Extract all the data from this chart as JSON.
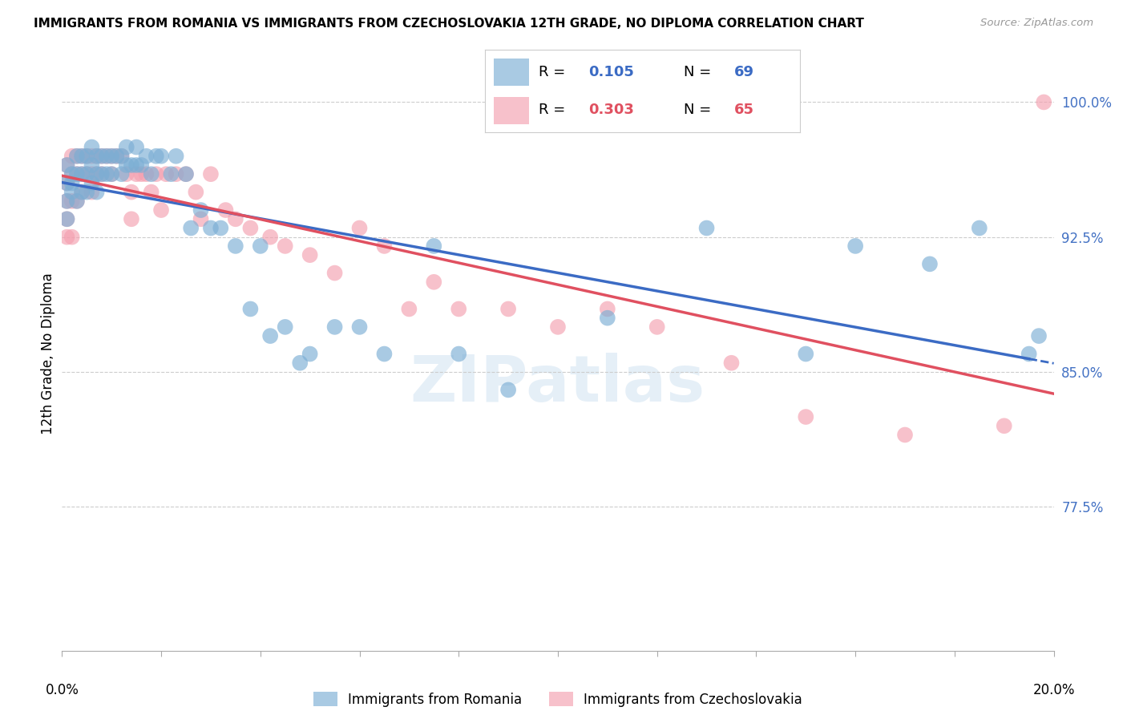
{
  "title": "IMMIGRANTS FROM ROMANIA VS IMMIGRANTS FROM CZECHOSLOVAKIA 12TH GRADE, NO DIPLOMA CORRELATION CHART",
  "source": "Source: ZipAtlas.com",
  "ylabel": "12th Grade, No Diploma",
  "xmin": 0.0,
  "xmax": 0.2,
  "ymin": 0.695,
  "ymax": 1.025,
  "ytick_vals": [
    0.775,
    0.85,
    0.925,
    1.0
  ],
  "ytick_labels": [
    "77.5%",
    "85.0%",
    "92.5%",
    "100.0%"
  ],
  "xtick_vals": [
    0.0,
    0.02,
    0.04,
    0.06,
    0.08,
    0.1,
    0.12,
    0.14,
    0.16,
    0.18,
    0.2
  ],
  "romania_R": 0.105,
  "romania_N": 69,
  "czech_R": 0.303,
  "czech_N": 65,
  "blue_color": "#7BAED4",
  "pink_color": "#F4A0B0",
  "blue_line_color": "#3B6BC4",
  "pink_line_color": "#E05060",
  "romania_x": [
    0.001,
    0.001,
    0.001,
    0.001,
    0.002,
    0.002,
    0.002,
    0.003,
    0.003,
    0.003,
    0.004,
    0.004,
    0.004,
    0.005,
    0.005,
    0.005,
    0.006,
    0.006,
    0.006,
    0.007,
    0.007,
    0.007,
    0.008,
    0.008,
    0.009,
    0.009,
    0.01,
    0.01,
    0.011,
    0.012,
    0.012,
    0.013,
    0.013,
    0.014,
    0.015,
    0.015,
    0.016,
    0.017,
    0.018,
    0.019,
    0.02,
    0.022,
    0.023,
    0.025,
    0.026,
    0.028,
    0.03,
    0.032,
    0.035,
    0.038,
    0.04,
    0.042,
    0.045,
    0.048,
    0.05,
    0.055,
    0.06,
    0.065,
    0.075,
    0.08,
    0.09,
    0.11,
    0.13,
    0.15,
    0.16,
    0.175,
    0.185,
    0.195,
    0.197
  ],
  "romania_y": [
    0.965,
    0.955,
    0.945,
    0.935,
    0.96,
    0.955,
    0.95,
    0.97,
    0.96,
    0.945,
    0.97,
    0.96,
    0.95,
    0.97,
    0.96,
    0.95,
    0.975,
    0.965,
    0.955,
    0.97,
    0.96,
    0.95,
    0.97,
    0.96,
    0.97,
    0.96,
    0.97,
    0.96,
    0.97,
    0.97,
    0.96,
    0.975,
    0.965,
    0.965,
    0.975,
    0.965,
    0.965,
    0.97,
    0.96,
    0.97,
    0.97,
    0.96,
    0.97,
    0.96,
    0.93,
    0.94,
    0.93,
    0.93,
    0.92,
    0.885,
    0.92,
    0.87,
    0.875,
    0.855,
    0.86,
    0.875,
    0.875,
    0.86,
    0.92,
    0.86,
    0.84,
    0.88,
    0.93,
    0.86,
    0.92,
    0.91,
    0.93,
    0.86,
    0.87
  ],
  "czech_x": [
    0.001,
    0.001,
    0.001,
    0.001,
    0.001,
    0.002,
    0.002,
    0.002,
    0.002,
    0.003,
    0.003,
    0.003,
    0.004,
    0.004,
    0.004,
    0.005,
    0.005,
    0.006,
    0.006,
    0.006,
    0.007,
    0.007,
    0.008,
    0.008,
    0.009,
    0.01,
    0.01,
    0.011,
    0.012,
    0.013,
    0.014,
    0.014,
    0.015,
    0.016,
    0.017,
    0.018,
    0.019,
    0.02,
    0.021,
    0.023,
    0.025,
    0.027,
    0.028,
    0.03,
    0.033,
    0.035,
    0.038,
    0.042,
    0.045,
    0.05,
    0.055,
    0.06,
    0.065,
    0.07,
    0.075,
    0.08,
    0.09,
    0.1,
    0.11,
    0.12,
    0.135,
    0.15,
    0.17,
    0.19,
    0.198
  ],
  "czech_y": [
    0.965,
    0.955,
    0.945,
    0.935,
    0.925,
    0.97,
    0.96,
    0.945,
    0.925,
    0.97,
    0.96,
    0.945,
    0.97,
    0.96,
    0.95,
    0.97,
    0.96,
    0.97,
    0.96,
    0.95,
    0.97,
    0.96,
    0.97,
    0.96,
    0.97,
    0.97,
    0.96,
    0.97,
    0.97,
    0.96,
    0.95,
    0.935,
    0.96,
    0.96,
    0.96,
    0.95,
    0.96,
    0.94,
    0.96,
    0.96,
    0.96,
    0.95,
    0.935,
    0.96,
    0.94,
    0.935,
    0.93,
    0.925,
    0.92,
    0.915,
    0.905,
    0.93,
    0.92,
    0.885,
    0.9,
    0.885,
    0.885,
    0.875,
    0.885,
    0.875,
    0.855,
    0.825,
    0.815,
    0.82,
    1.0
  ]
}
